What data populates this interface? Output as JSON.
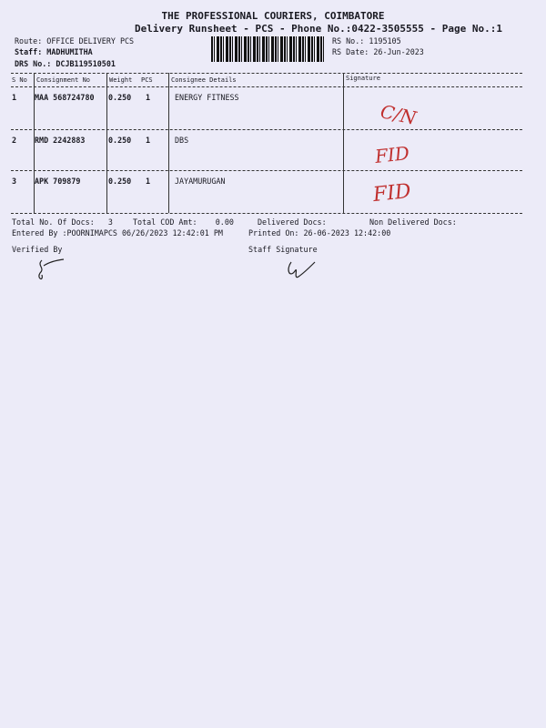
{
  "header": {
    "company": "THE PROFESSIONAL COURIERS, COIMBATORE",
    "subtitle": "Delivery Runsheet - PCS - Phone No.:0422-3505555 - Page No.:1",
    "route": "Route: OFFICE DELIVERY PCS",
    "staff": "Staff: MADHUMITHA",
    "drs_no": "DRS No.: DCJB119510501",
    "rs_no": "RS No.: 1195105",
    "rs_date": "RS Date: 26-Jun-2023"
  },
  "table": {
    "columns": [
      "S No",
      "Consignment No",
      "Weight",
      "PCS",
      "Consignee Details",
      "Signature"
    ],
    "rows": [
      {
        "sno": "1",
        "consignment": "MAA 568724780",
        "weight": "0.250",
        "pcs": "1",
        "consignee": "ENERGY FITNESS",
        "signature": "C/N"
      },
      {
        "sno": "2",
        "consignment": "RMD 2242883",
        "weight": "0.250",
        "pcs": "1",
        "consignee": "DBS",
        "signature": "FID"
      },
      {
        "sno": "3",
        "consignment": "APK 709879",
        "weight": "0.250",
        "pcs": "1",
        "consignee": "JAYAMURUGAN",
        "signature": "FID"
      }
    ]
  },
  "footer": {
    "total_docs": "Total No. Of Docs:   3",
    "total_cod": "Total COD Amt:    0.00",
    "delivered": "Delivered Docs:",
    "non_delivered": "Non Delivered Docs:",
    "entered_by": "Entered By :POORNIMAPCS 06/26/2023 12:42:01 PM",
    "printed_on": "Printed On: 26-06-2023 12:42:00",
    "verified_by": "Verified By",
    "staff_signature": "Staff Signature"
  }
}
